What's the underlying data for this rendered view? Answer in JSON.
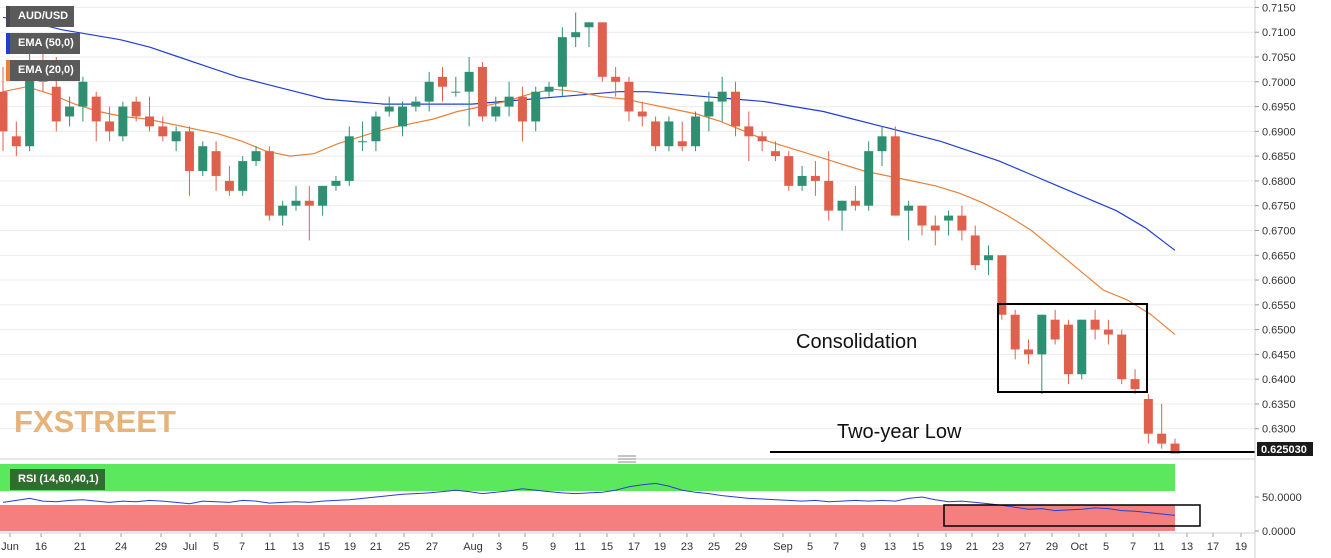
{
  "chart_data": [
    {
      "type": "candlestick",
      "symbol": "AUD/USD",
      "indicators": [
        {
          "name": "EMA (50,0)",
          "color": "#1f3fd4"
        },
        {
          "name": "EMA (20,0)",
          "color": "#e8823a"
        }
      ],
      "y_ticks": [
        "0.7150",
        "0.7100",
        "0.7050",
        "0.7000",
        "0.6950",
        "0.6900",
        "0.6850",
        "0.6800",
        "0.6750",
        "0.6700",
        "0.6650",
        "0.6600",
        "0.6550",
        "0.6500",
        "0.6450",
        "0.6400",
        "0.6350",
        "0.6300"
      ],
      "ylim": [
        0.6245,
        0.7165
      ],
      "x_ticks": [
        "Jun",
        "16",
        "21",
        "24",
        "29",
        "Jul",
        "5",
        "7",
        "11",
        "13",
        "15",
        "19",
        "21",
        "25",
        "27",
        "Aug",
        "3",
        "5",
        "9",
        "11",
        "15",
        "17",
        "19",
        "23",
        "25",
        "29",
        "Sep",
        "5",
        "7",
        "9",
        "13",
        "15",
        "19",
        "21",
        "23",
        "27",
        "29",
        "Oct",
        "5",
        "7",
        "11",
        "13",
        "17",
        "19"
      ],
      "current_price": "0.625030",
      "up_color": "#2f8f72",
      "down_color": "#e0604e",
      "candles": [
        [
          0.698,
          0.703,
          0.686,
          0.69
        ],
        [
          0.689,
          0.692,
          0.685,
          0.687
        ],
        [
          0.687,
          0.706,
          0.686,
          0.702
        ],
        [
          0.702,
          0.706,
          0.698,
          0.7
        ],
        [
          0.699,
          0.705,
          0.69,
          0.692
        ],
        [
          0.693,
          0.697,
          0.691,
          0.695
        ],
        [
          0.695,
          0.701,
          0.692,
          0.7
        ],
        [
          0.697,
          0.698,
          0.688,
          0.692
        ],
        [
          0.692,
          0.695,
          0.688,
          0.69
        ],
        [
          0.689,
          0.696,
          0.688,
          0.695
        ],
        [
          0.696,
          0.697,
          0.692,
          0.693
        ],
        [
          0.693,
          0.697,
          0.69,
          0.691
        ],
        [
          0.691,
          0.693,
          0.688,
          0.689
        ],
        [
          0.688,
          0.691,
          0.686,
          0.69
        ],
        [
          0.69,
          0.691,
          0.677,
          0.682
        ],
        [
          0.682,
          0.688,
          0.681,
          0.687
        ],
        [
          0.686,
          0.688,
          0.678,
          0.681
        ],
        [
          0.68,
          0.683,
          0.677,
          0.678
        ],
        [
          0.678,
          0.685,
          0.677,
          0.684
        ],
        [
          0.684,
          0.687,
          0.683,
          0.686
        ],
        [
          0.686,
          0.687,
          0.672,
          0.673
        ],
        [
          0.673,
          0.676,
          0.671,
          0.675
        ],
        [
          0.675,
          0.679,
          0.674,
          0.676
        ],
        [
          0.676,
          0.679,
          0.668,
          0.675
        ],
        [
          0.675,
          0.679,
          0.673,
          0.679
        ],
        [
          0.679,
          0.681,
          0.678,
          0.68
        ],
        [
          0.68,
          0.691,
          0.679,
          0.689
        ],
        [
          0.688,
          0.692,
          0.686,
          0.688
        ],
        [
          0.688,
          0.694,
          0.686,
          0.693
        ],
        [
          0.694,
          0.697,
          0.693,
          0.695
        ],
        [
          0.691,
          0.696,
          0.689,
          0.695
        ],
        [
          0.695,
          0.697,
          0.694,
          0.696
        ],
        [
          0.696,
          0.702,
          0.694,
          0.7
        ],
        [
          0.701,
          0.703,
          0.696,
          0.699
        ],
        [
          0.698,
          0.701,
          0.697,
          0.698
        ],
        [
          0.698,
          0.705,
          0.691,
          0.702
        ],
        [
          0.703,
          0.704,
          0.692,
          0.693
        ],
        [
          0.693,
          0.697,
          0.692,
          0.695
        ],
        [
          0.695,
          0.7,
          0.693,
          0.697
        ],
        [
          0.697,
          0.699,
          0.688,
          0.692
        ],
        [
          0.692,
          0.699,
          0.69,
          0.698
        ],
        [
          0.698,
          0.7,
          0.697,
          0.699
        ],
        [
          0.699,
          0.711,
          0.697,
          0.709
        ],
        [
          0.709,
          0.714,
          0.707,
          0.71
        ],
        [
          0.711,
          0.712,
          0.707,
          0.712
        ],
        [
          0.712,
          0.712,
          0.7,
          0.701
        ],
        [
          0.701,
          0.703,
          0.697,
          0.7
        ],
        [
          0.7,
          0.701,
          0.692,
          0.694
        ],
        [
          0.694,
          0.696,
          0.691,
          0.693
        ],
        [
          0.692,
          0.693,
          0.686,
          0.687
        ],
        [
          0.687,
          0.693,
          0.686,
          0.692
        ],
        [
          0.688,
          0.692,
          0.686,
          0.687
        ],
        [
          0.687,
          0.694,
          0.686,
          0.693
        ],
        [
          0.693,
          0.698,
          0.69,
          0.696
        ],
        [
          0.696,
          0.701,
          0.692,
          0.698
        ],
        [
          0.698,
          0.7,
          0.689,
          0.691
        ],
        [
          0.691,
          0.694,
          0.684,
          0.689
        ],
        [
          0.689,
          0.69,
          0.686,
          0.688
        ],
        [
          0.686,
          0.688,
          0.684,
          0.685
        ],
        [
          0.685,
          0.686,
          0.678,
          0.679
        ],
        [
          0.679,
          0.683,
          0.678,
          0.681
        ],
        [
          0.681,
          0.684,
          0.677,
          0.68
        ],
        [
          0.68,
          0.686,
          0.672,
          0.674
        ],
        [
          0.674,
          0.676,
          0.67,
          0.676
        ],
        [
          0.676,
          0.679,
          0.674,
          0.675
        ],
        [
          0.675,
          0.688,
          0.674,
          0.686
        ],
        [
          0.686,
          0.691,
          0.683,
          0.689
        ],
        [
          0.689,
          0.691,
          0.673,
          0.673
        ],
        [
          0.674,
          0.676,
          0.668,
          0.675
        ],
        [
          0.675,
          0.675,
          0.669,
          0.671
        ],
        [
          0.671,
          0.673,
          0.667,
          0.67
        ],
        [
          0.672,
          0.674,
          0.669,
          0.673
        ],
        [
          0.673,
          0.675,
          0.668,
          0.67
        ],
        [
          0.669,
          0.671,
          0.662,
          0.663
        ],
        [
          0.664,
          0.667,
          0.661,
          0.665
        ],
        [
          0.665,
          0.665,
          0.652,
          0.653
        ],
        [
          0.653,
          0.654,
          0.644,
          0.646
        ],
        [
          0.646,
          0.648,
          0.643,
          0.645
        ],
        [
          0.645,
          0.653,
          0.637,
          0.653
        ],
        [
          0.652,
          0.654,
          0.647,
          0.648
        ],
        [
          0.651,
          0.652,
          0.639,
          0.641
        ],
        [
          0.641,
          0.652,
          0.64,
          0.652
        ],
        [
          0.652,
          0.654,
          0.648,
          0.65
        ],
        [
          0.65,
          0.652,
          0.647,
          0.649
        ],
        [
          0.649,
          0.65,
          0.639,
          0.64
        ],
        [
          0.64,
          0.642,
          0.637,
          0.638
        ],
        [
          0.636,
          0.637,
          0.627,
          0.629
        ],
        [
          0.629,
          0.635,
          0.626,
          0.627
        ],
        [
          0.627,
          0.628,
          0.625,
          0.625
        ]
      ],
      "ema_fast": [
        0.698,
        0.699,
        0.6975,
        0.6955,
        0.694,
        0.693,
        0.6925,
        0.6915,
        0.6905,
        0.6895,
        0.688,
        0.686,
        0.685,
        0.6855,
        0.6875,
        0.689,
        0.6905,
        0.6915,
        0.6925,
        0.694,
        0.695,
        0.696,
        0.6975,
        0.6985,
        0.698,
        0.697,
        0.6965,
        0.6955,
        0.6945,
        0.6935,
        0.692,
        0.69,
        0.688,
        0.6865,
        0.685,
        0.6835,
        0.682,
        0.681,
        0.68,
        0.679,
        0.6775,
        0.6755,
        0.673,
        0.67,
        0.666,
        0.662,
        0.658,
        0.656,
        0.653,
        0.649
      ],
      "ema_fast_start": 0,
      "ema_slow": [
        0.713,
        0.712,
        0.7105,
        0.7095,
        0.7085,
        0.707,
        0.705,
        0.703,
        0.701,
        0.6995,
        0.698,
        0.6965,
        0.696,
        0.6955,
        0.6955,
        0.6955,
        0.6955,
        0.696,
        0.6965,
        0.697,
        0.6975,
        0.698,
        0.698,
        0.6975,
        0.697,
        0.6965,
        0.696,
        0.695,
        0.694,
        0.6925,
        0.691,
        0.6895,
        0.688,
        0.686,
        0.684,
        0.6815,
        0.679,
        0.6765,
        0.674,
        0.6705,
        0.666
      ],
      "annotations": {
        "consolidation": "Consolidation",
        "low": "Two-year Low"
      }
    },
    {
      "type": "line",
      "name": "RSI (14,60,40,1)",
      "y_ticks": [
        "50.0000",
        "0.0000"
      ],
      "overbought_color": "#5ce85c",
      "oversold_color": "#f57e7e",
      "values": [
        42,
        45,
        48,
        44,
        43,
        45,
        46,
        44,
        42,
        44,
        43,
        45,
        44,
        42,
        40,
        44,
        43,
        42,
        45,
        44,
        41,
        42,
        43,
        42,
        44,
        45,
        46,
        48,
        50,
        52,
        54,
        55,
        56,
        58,
        60,
        58,
        55,
        57,
        59,
        62,
        60,
        58,
        56,
        55,
        56,
        57,
        60,
        65,
        68,
        70,
        66,
        60,
        57,
        55,
        52,
        50,
        48,
        47,
        46,
        45,
        44,
        45,
        43,
        44,
        45,
        44,
        45,
        44,
        48,
        50,
        46,
        43,
        44,
        42,
        40,
        38,
        35,
        32,
        33,
        30,
        31,
        32,
        34,
        33,
        30,
        29,
        27,
        25,
        23
      ]
    }
  ]
}
